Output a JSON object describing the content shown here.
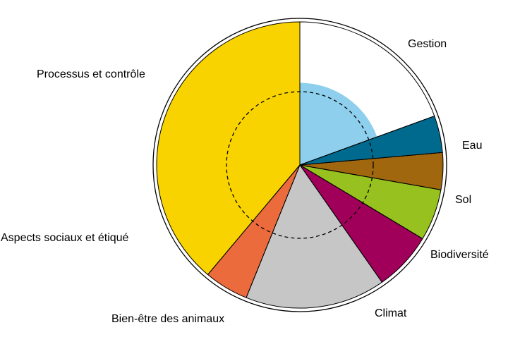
{
  "chart_data": {
    "type": "pie",
    "subtype": "polar-area",
    "categories": [
      "Gestion",
      "Eau",
      "Sol",
      "Biodiversité",
      "Climat",
      "Bien-être des animaux",
      "Aspects sociaux et étiqué",
      "Processus et contrôle"
    ],
    "slice_angles_deg": [
      70,
      15,
      15,
      21,
      24,
      57,
      18,
      140
    ],
    "inner_values": [
      0.56,
      1.0,
      1.0,
      1.0,
      1.0,
      1.0,
      1.0,
      1.0
    ],
    "outer_values": [
      1.0,
      1.0,
      1.0,
      1.0,
      1.0,
      1.0,
      1.0,
      1.0
    ],
    "scale_max": 1.0,
    "reference_circle": 0.5,
    "colors": [
      "#8dcfec",
      "#006a8e",
      "#a0670f",
      "#97c11f",
      "#a0005a",
      "#c6c6c6",
      "#ec6b3d",
      "#f8d300"
    ],
    "title": "",
    "legend": "none"
  }
}
